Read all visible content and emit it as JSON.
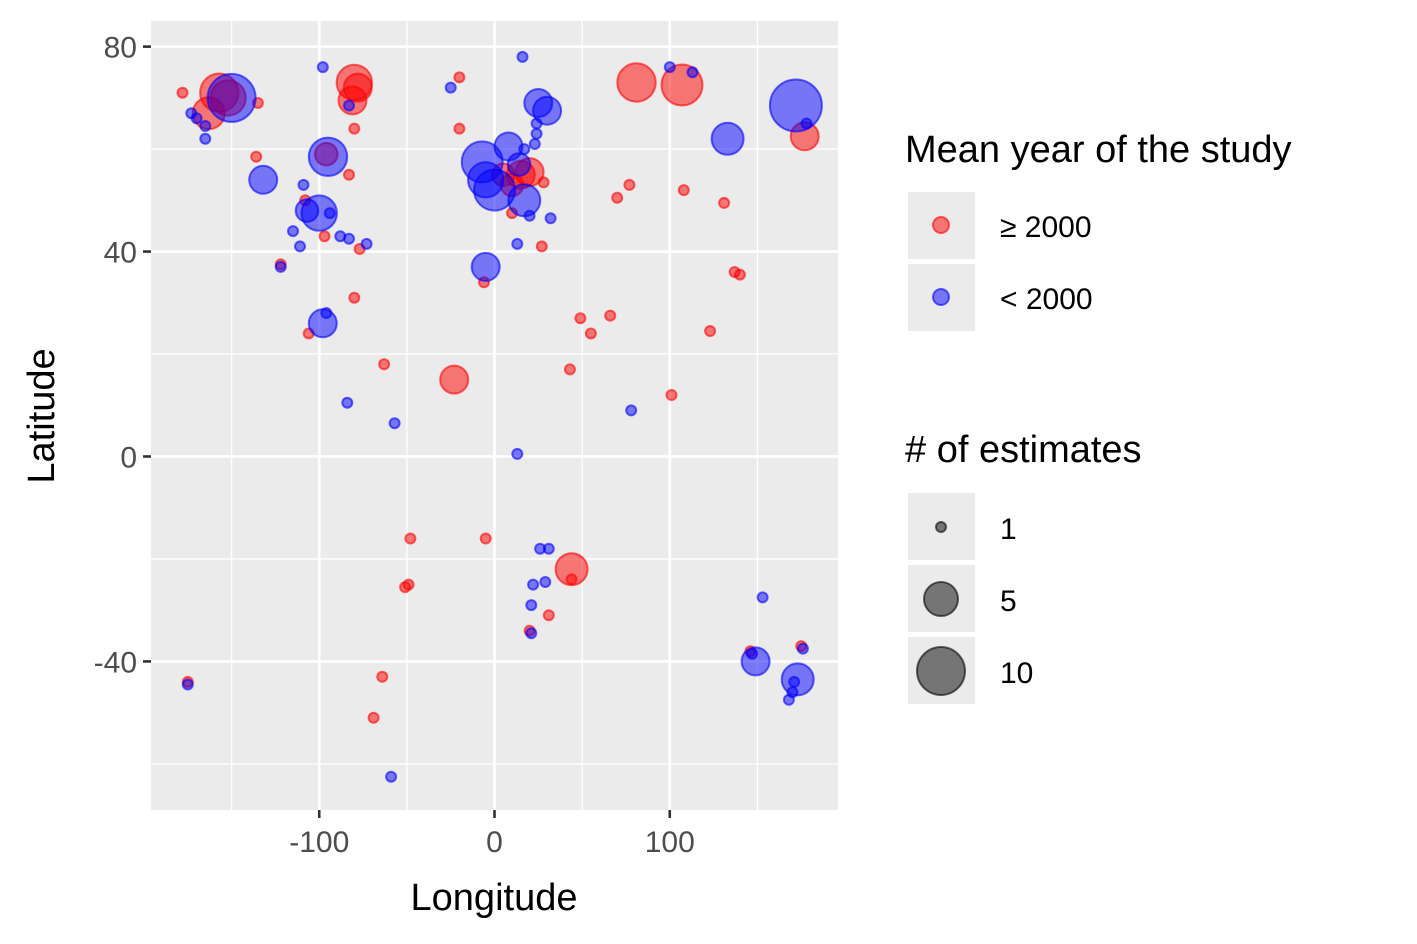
{
  "chart_data": {
    "type": "scatter",
    "xlabel": "Longitude",
    "ylabel": "Latitude",
    "xlim": [
      -196,
      196
    ],
    "ylim": [
      -69,
      85
    ],
    "x_ticks": [
      -100,
      0,
      100
    ],
    "y_ticks": [
      -40,
      0,
      40,
      80
    ],
    "x_tick_labels": [
      "-100",
      "0",
      "100"
    ],
    "y_tick_labels": [
      "-40",
      "0",
      "40",
      "80"
    ],
    "x_minor": [
      -150,
      -50,
      50,
      150
    ],
    "y_minor": [
      -60,
      -20,
      20,
      60
    ],
    "grid": true,
    "legend_position": "right",
    "color_legend": {
      "title": "Mean year of the study",
      "entries": [
        {
          "label": "≥ 2000",
          "color": "#ff0000"
        },
        {
          "label": "< 2000",
          "color": "#0000ff"
        }
      ]
    },
    "size_legend": {
      "title": "# of estimates",
      "entries": [
        {
          "label": "1",
          "value": 1
        },
        {
          "label": "5",
          "value": 5
        },
        {
          "label": "10",
          "value": 10
        }
      ]
    },
    "colors": {
      "ge2000": "#ff0000",
      "lt2000": "#0000ff"
    },
    "series": [
      {
        "key": "ge2000",
        "color": "#ff0000",
        "points": [
          {
            "x": -178,
            "y": 71,
            "n": 1
          },
          {
            "x": -163,
            "y": 67,
            "n": 4
          },
          {
            "x": -157,
            "y": 71,
            "n": 6
          },
          {
            "x": -152,
            "y": 70,
            "n": 5
          },
          {
            "x": -135,
            "y": 69,
            "n": 1
          },
          {
            "x": -136,
            "y": 58.5,
            "n": 1
          },
          {
            "x": -80,
            "y": 73,
            "n": 5
          },
          {
            "x": -78,
            "y": 72,
            "n": 3
          },
          {
            "x": -81,
            "y": 69.5,
            "n": 3
          },
          {
            "x": -80,
            "y": 64,
            "n": 1
          },
          {
            "x": -83,
            "y": 55,
            "n": 1
          },
          {
            "x": -20,
            "y": 74,
            "n": 1
          },
          {
            "x": -20,
            "y": 64,
            "n": 1
          },
          {
            "x": -108,
            "y": 50,
            "n": 1
          },
          {
            "x": -96,
            "y": 59,
            "n": 2
          },
          {
            "x": -97,
            "y": 43,
            "n": 1
          },
          {
            "x": -77,
            "y": 40.5,
            "n": 1
          },
          {
            "x": -80,
            "y": 31,
            "n": 1
          },
          {
            "x": -122,
            "y": 37.5,
            "n": 1
          },
          {
            "x": -106,
            "y": 24,
            "n": 1
          },
          {
            "x": -63,
            "y": 18,
            "n": 1
          },
          {
            "x": -23,
            "y": 15,
            "n": 3
          },
          {
            "x": -6,
            "y": 34,
            "n": 1
          },
          {
            "x": 5,
            "y": 55,
            "n": 2
          },
          {
            "x": 10,
            "y": 53,
            "n": 2
          },
          {
            "x": 15,
            "y": 55,
            "n": 3
          },
          {
            "x": 20,
            "y": 55.5,
            "n": 3
          },
          {
            "x": 28,
            "y": 53.5,
            "n": 1
          },
          {
            "x": 10,
            "y": 47.5,
            "n": 1
          },
          {
            "x": 27,
            "y": 41,
            "n": 1
          },
          {
            "x": 49,
            "y": 27,
            "n": 1
          },
          {
            "x": 55,
            "y": 24,
            "n": 1
          },
          {
            "x": 66,
            "y": 27.5,
            "n": 1
          },
          {
            "x": 43,
            "y": 17,
            "n": 1
          },
          {
            "x": 70,
            "y": 50.5,
            "n": 1
          },
          {
            "x": 77,
            "y": 53,
            "n": 1
          },
          {
            "x": 81,
            "y": 73,
            "n": 6
          },
          {
            "x": 107,
            "y": 72.5,
            "n": 7
          },
          {
            "x": 108,
            "y": 52,
            "n": 1
          },
          {
            "x": 131,
            "y": 49.5,
            "n": 1
          },
          {
            "x": 137,
            "y": 36,
            "n": 1
          },
          {
            "x": 140,
            "y": 35.5,
            "n": 1
          },
          {
            "x": 123,
            "y": 24.5,
            "n": 1
          },
          {
            "x": 101,
            "y": 12,
            "n": 1
          },
          {
            "x": 177,
            "y": 62.5,
            "n": 3
          },
          {
            "x": 175,
            "y": -37,
            "n": 1
          },
          {
            "x": 146,
            "y": -38,
            "n": 1
          },
          {
            "x": 44,
            "y": -22,
            "n": 4
          },
          {
            "x": 44,
            "y": -24,
            "n": 1
          },
          {
            "x": 31,
            "y": -31,
            "n": 1
          },
          {
            "x": 20,
            "y": -34,
            "n": 1
          },
          {
            "x": -48,
            "y": -16,
            "n": 1
          },
          {
            "x": -5,
            "y": -16,
            "n": 1
          },
          {
            "x": -49,
            "y": -25,
            "n": 1
          },
          {
            "x": -51,
            "y": -25.5,
            "n": 1
          },
          {
            "x": -64,
            "y": -43,
            "n": 1
          },
          {
            "x": -69,
            "y": -51,
            "n": 1
          },
          {
            "x": -175,
            "y": -44,
            "n": 1
          }
        ]
      },
      {
        "key": "lt2000",
        "color": "#0000ff",
        "points": [
          {
            "x": -150,
            "y": 70,
            "n": 10
          },
          {
            "x": -173,
            "y": 67,
            "n": 1
          },
          {
            "x": -170,
            "y": 66,
            "n": 1
          },
          {
            "x": -165,
            "y": 64.5,
            "n": 1
          },
          {
            "x": -165,
            "y": 62,
            "n": 1
          },
          {
            "x": -132,
            "y": 54,
            "n": 3
          },
          {
            "x": -98,
            "y": 76,
            "n": 1
          },
          {
            "x": -83,
            "y": 68.5,
            "n": 1
          },
          {
            "x": -25,
            "y": 72,
            "n": 1
          },
          {
            "x": -95,
            "y": 58.5,
            "n": 6
          },
          {
            "x": -109,
            "y": 53,
            "n": 1
          },
          {
            "x": -100,
            "y": 47.5,
            "n": 5
          },
          {
            "x": -107,
            "y": 48,
            "n": 2
          },
          {
            "x": -94,
            "y": 47.5,
            "n": 1
          },
          {
            "x": -88,
            "y": 43,
            "n": 1
          },
          {
            "x": -83,
            "y": 42.5,
            "n": 1
          },
          {
            "x": -73,
            "y": 41.5,
            "n": 1
          },
          {
            "x": -115,
            "y": 44,
            "n": 1
          },
          {
            "x": -111,
            "y": 41,
            "n": 1
          },
          {
            "x": -122,
            "y": 37,
            "n": 1
          },
          {
            "x": -96,
            "y": 28,
            "n": 1
          },
          {
            "x": -98,
            "y": 26,
            "n": 3
          },
          {
            "x": -84,
            "y": 10.5,
            "n": 1
          },
          {
            "x": -57,
            "y": 6.5,
            "n": 1
          },
          {
            "x": 16,
            "y": 78,
            "n": 1
          },
          {
            "x": -7,
            "y": 57.5,
            "n": 7
          },
          {
            "x": -5,
            "y": 54,
            "n": 5
          },
          {
            "x": 0,
            "y": 52,
            "n": 7
          },
          {
            "x": 8,
            "y": 60.5,
            "n": 3
          },
          {
            "x": 14,
            "y": 57,
            "n": 2
          },
          {
            "x": 17,
            "y": 60,
            "n": 1
          },
          {
            "x": 17,
            "y": 50,
            "n": 4
          },
          {
            "x": 25,
            "y": 69,
            "n": 3
          },
          {
            "x": 30,
            "y": 67.5,
            "n": 3
          },
          {
            "x": 24,
            "y": 65,
            "n": 1
          },
          {
            "x": 24,
            "y": 63,
            "n": 1
          },
          {
            "x": 23,
            "y": 61,
            "n": 1
          },
          {
            "x": 20,
            "y": 47,
            "n": 1
          },
          {
            "x": 32,
            "y": 46.5,
            "n": 1
          },
          {
            "x": 13,
            "y": 41.5,
            "n": 1
          },
          {
            "x": -5,
            "y": 37,
            "n": 3
          },
          {
            "x": 100,
            "y": 76,
            "n": 1
          },
          {
            "x": 113,
            "y": 75,
            "n": 1
          },
          {
            "x": 133,
            "y": 62,
            "n": 4
          },
          {
            "x": 172,
            "y": 68.5,
            "n": 12
          },
          {
            "x": 178,
            "y": 65,
            "n": 1
          },
          {
            "x": 78,
            "y": 9,
            "n": 1
          },
          {
            "x": 13,
            "y": 0.5,
            "n": 1
          },
          {
            "x": 26,
            "y": -18,
            "n": 1
          },
          {
            "x": 31,
            "y": -18,
            "n": 1
          },
          {
            "x": 22,
            "y": -25,
            "n": 1
          },
          {
            "x": 29,
            "y": -24.5,
            "n": 1
          },
          {
            "x": 21,
            "y": -29,
            "n": 1
          },
          {
            "x": 21,
            "y": -34.5,
            "n": 1
          },
          {
            "x": 153,
            "y": -27.5,
            "n": 1
          },
          {
            "x": 147,
            "y": -38.5,
            "n": 1
          },
          {
            "x": 149,
            "y": -40,
            "n": 3
          },
          {
            "x": 176,
            "y": -37.5,
            "n": 1
          },
          {
            "x": 173,
            "y": -43.5,
            "n": 4
          },
          {
            "x": 171,
            "y": -44,
            "n": 1
          },
          {
            "x": 170,
            "y": -46,
            "n": 1
          },
          {
            "x": 168,
            "y": -47.5,
            "n": 1
          },
          {
            "x": -59,
            "y": -62.5,
            "n": 1
          },
          {
            "x": -175,
            "y": -44.5,
            "n": 1
          }
        ]
      }
    ]
  }
}
